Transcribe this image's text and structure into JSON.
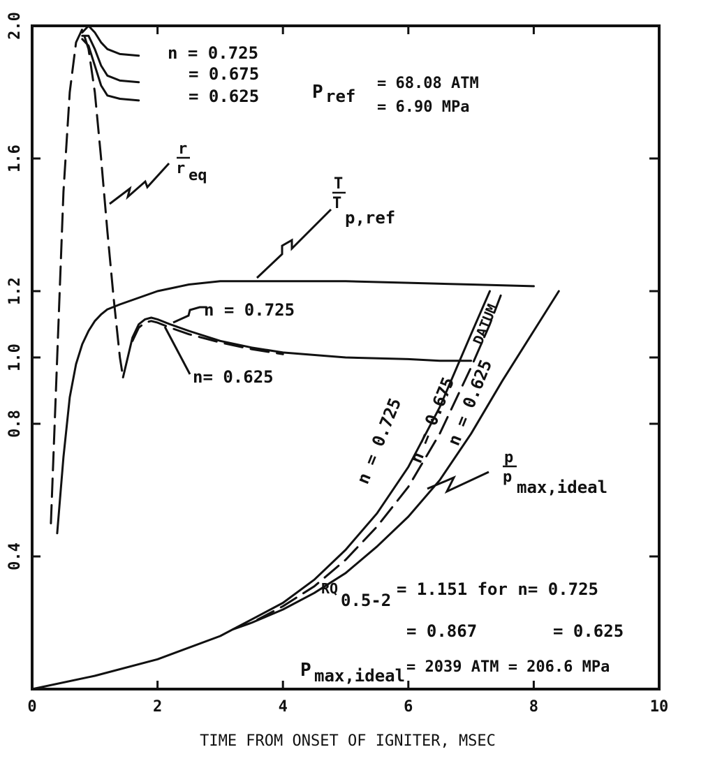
{
  "chart_data": {
    "type": "line",
    "title": "",
    "xlabel": "TIME FROM ONSET OF IGNITER, MSEC",
    "ylabel": "",
    "xlim": [
      0,
      10
    ],
    "ylim": [
      0.0,
      2.0
    ],
    "x_ticks": [
      "0",
      "2",
      "4",
      "6",
      "8",
      "10"
    ],
    "y_ticks": [
      {
        "value": 0.4,
        "label": "0.4"
      },
      {
        "value": 0.8,
        "label": "0.8"
      },
      {
        "value": 1.0,
        "label": "1.0"
      },
      {
        "value": 1.2,
        "label": "1.2"
      },
      {
        "value": 1.6,
        "label": "1.6"
      },
      {
        "value": 2.0,
        "label": "2.0"
      }
    ],
    "grid": false,
    "series": [
      {
        "style": "dashed",
        "x": [
          0.3,
          0.4,
          0.5,
          0.6,
          0.7,
          0.8,
          0.9,
          1.0,
          1.1,
          1.2,
          1.3,
          1.4,
          1.45
        ],
        "y": [
          0.5,
          1.0,
          1.5,
          1.8,
          1.95,
          1.99,
          1.93,
          1.8,
          1.6,
          1.38,
          1.18,
          1.0,
          0.94
        ]
      },
      {
        "style": "solid",
        "x": [
          0.8,
          0.9,
          1.0,
          1.1,
          1.2,
          1.4,
          1.7
        ],
        "y": [
          1.98,
          2.0,
          1.98,
          1.95,
          1.93,
          1.915,
          1.91
        ]
      },
      {
        "style": "solid",
        "x": [
          0.8,
          0.9,
          1.0,
          1.1,
          1.2,
          1.4,
          1.7
        ],
        "y": [
          1.97,
          1.97,
          1.93,
          1.88,
          1.85,
          1.835,
          1.83
        ]
      },
      {
        "style": "solid",
        "x": [
          0.8,
          0.9,
          1.0,
          1.1,
          1.2,
          1.4,
          1.7
        ],
        "y": [
          1.96,
          1.94,
          1.88,
          1.82,
          1.79,
          1.78,
          1.775
        ]
      },
      {
        "style": "solid",
        "x": [
          0.4,
          0.5,
          0.6,
          0.7,
          0.8,
          0.9,
          1.0,
          1.1,
          1.2,
          1.4,
          1.7,
          2.0,
          2.5,
          3.0,
          3.5,
          4.0,
          5.0,
          6.0,
          7.0,
          8.0
        ],
        "y": [
          0.47,
          0.7,
          0.88,
          0.98,
          1.04,
          1.08,
          1.11,
          1.13,
          1.145,
          1.16,
          1.18,
          1.2,
          1.22,
          1.23,
          1.23,
          1.23,
          1.23,
          1.225,
          1.22,
          1.215
        ]
      },
      {
        "style": "solid",
        "x": [
          1.45,
          1.5,
          1.55,
          1.6,
          1.7,
          1.8,
          1.9,
          2.0,
          2.2,
          2.5,
          3.0,
          3.5,
          4.0,
          5.0,
          6.0,
          6.5,
          7.0
        ],
        "y": [
          0.94,
          0.98,
          1.02,
          1.06,
          1.1,
          1.115,
          1.12,
          1.115,
          1.1,
          1.08,
          1.05,
          1.03,
          1.015,
          1.0,
          0.995,
          0.99,
          0.99
        ]
      },
      {
        "style": "dashed",
        "x": [
          1.6,
          1.7,
          1.8,
          1.9,
          2.0,
          2.2,
          2.5,
          3.0,
          3.5,
          4.0
        ],
        "y": [
          1.05,
          1.09,
          1.105,
          1.11,
          1.105,
          1.09,
          1.07,
          1.045,
          1.025,
          1.01
        ]
      },
      {
        "style": "solid",
        "x": [
          0,
          1,
          2,
          3,
          3.5,
          4,
          4.5,
          5,
          5.5,
          6,
          6.5,
          7.0,
          7.3
        ],
        "y": [
          0.0,
          0.04,
          0.09,
          0.16,
          0.21,
          0.26,
          0.33,
          0.42,
          0.53,
          0.67,
          0.85,
          1.07,
          1.2
        ]
      },
      {
        "style": "dashed",
        "x": [
          3.2,
          3.5,
          4,
          4.5,
          5,
          5.5,
          6,
          6.5,
          7.0,
          7.3,
          7.5
        ],
        "y": [
          0.18,
          0.2,
          0.25,
          0.31,
          0.39,
          0.49,
          0.61,
          0.77,
          0.97,
          1.1,
          1.2
        ]
      },
      {
        "style": "solid",
        "x": [
          3.2,
          3.5,
          4,
          4.5,
          5,
          5.5,
          6,
          6.5,
          7.0,
          7.5,
          8.0,
          8.4
        ],
        "y": [
          0.18,
          0.2,
          0.24,
          0.29,
          0.35,
          0.43,
          0.52,
          0.63,
          0.77,
          0.93,
          1.08,
          1.2
        ]
      }
    ],
    "labels": {
      "n1": "n = 0.725",
      "n2": "= 0.675",
      "n3": "= 0.625",
      "pref_name": "P",
      "pref_sub": "ref",
      "pref_v1": "= 68.08 ATM",
      "pref_v2": "= 6.90 MPa",
      "r_num": "r",
      "r_den": "r",
      "r_sub": "eq",
      "t_num": "T",
      "t_den": "T",
      "t_sub": "p,ref",
      "mid_n1": "n = 0.725",
      "mid_n2": "n= 0.625",
      "c1": "n = 0.725",
      "c2": "n = 0.675",
      "datum": "DATUM",
      "c3": "n = 0.625",
      "p_num": "p",
      "p_den": "p",
      "p_sub": "max,ideal",
      "rq_name": "RQ",
      "rq_sub": "0.5-2",
      "rq_v1": "= 1.151 for n= 0.725",
      "rq_v2": "= 0.867",
      "rq_v3": "= 0.625",
      "pmax_name": "P",
      "pmax_sub": "max,ideal",
      "pmax_val": "= 2039 ATM = 206.6 MPa"
    }
  }
}
